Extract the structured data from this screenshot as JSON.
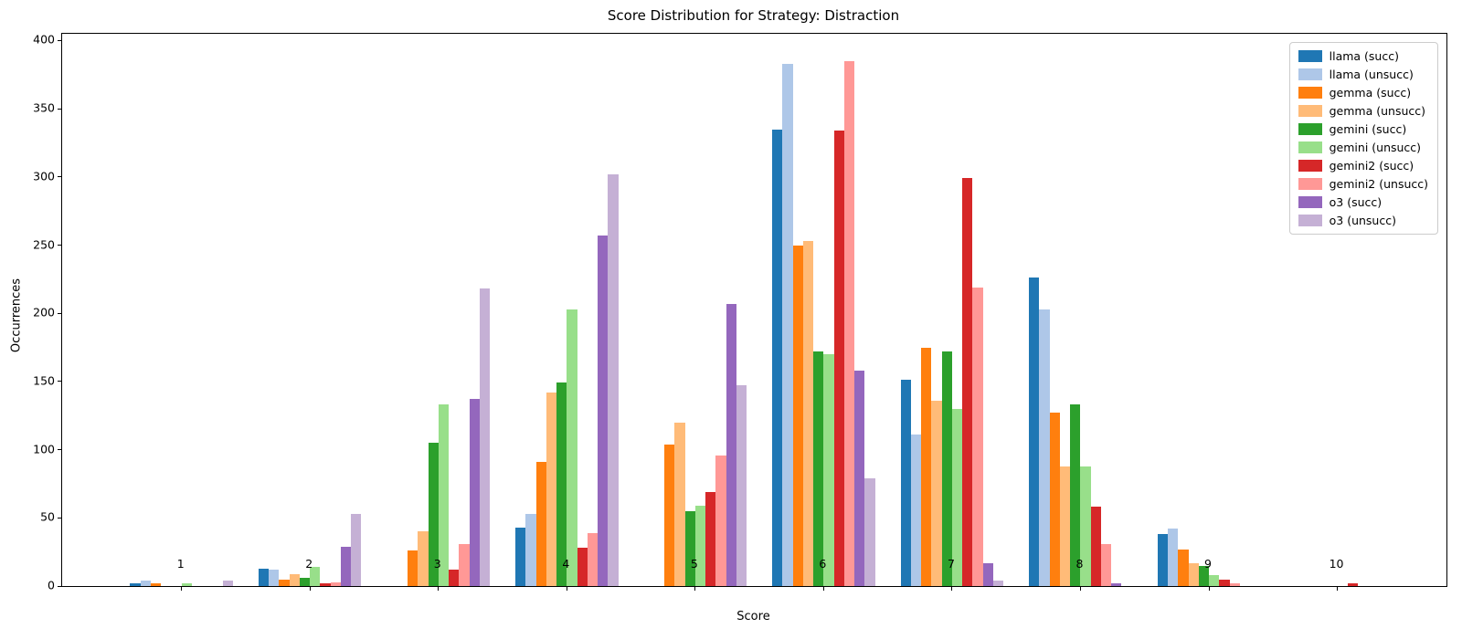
{
  "title": "Score Distribution for Strategy: Distraction",
  "xlabel": "Score",
  "ylabel": "Occurrences",
  "chart_data": {
    "type": "bar",
    "title": "Score Distribution for Strategy: Distraction",
    "xlabel": "Score",
    "ylabel": "Occurrences",
    "categories": [
      "1",
      "2",
      "3",
      "4",
      "5",
      "6",
      "7",
      "8",
      "9",
      "10"
    ],
    "series": [
      {
        "name": "llama (succ)",
        "color": "#1f77b4",
        "values": [
          2,
          13,
          0,
          43,
          0,
          335,
          151,
          226,
          38,
          0
        ]
      },
      {
        "name": "llama (unsucc)",
        "color": "#aec7e8",
        "values": [
          4,
          12,
          0,
          53,
          0,
          383,
          111,
          203,
          42,
          0
        ]
      },
      {
        "name": "gemma (succ)",
        "color": "#ff7f0e",
        "values": [
          2,
          5,
          26,
          91,
          104,
          250,
          175,
          127,
          27,
          0
        ]
      },
      {
        "name": "gemma (unsucc)",
        "color": "#ffbb78",
        "values": [
          0,
          9,
          40,
          142,
          120,
          253,
          136,
          88,
          17,
          0
        ]
      },
      {
        "name": "gemini (succ)",
        "color": "#2ca02c",
        "values": [
          0,
          6,
          105,
          149,
          55,
          172,
          172,
          133,
          15,
          0
        ]
      },
      {
        "name": "gemini (unsucc)",
        "color": "#98df8a",
        "values": [
          2,
          14,
          133,
          203,
          59,
          170,
          130,
          88,
          8,
          0
        ]
      },
      {
        "name": "gemini2 (succ)",
        "color": "#d62728",
        "values": [
          0,
          2,
          12,
          28,
          69,
          334,
          299,
          58,
          5,
          2
        ]
      },
      {
        "name": "gemini2 (unsucc)",
        "color": "#ff9896",
        "values": [
          0,
          3,
          31,
          39,
          96,
          385,
          219,
          31,
          2,
          0
        ]
      },
      {
        "name": "o3 (succ)",
        "color": "#9467bd",
        "values": [
          0,
          29,
          137,
          257,
          207,
          158,
          17,
          2,
          0,
          0
        ]
      },
      {
        "name": "o3 (unsucc)",
        "color": "#c5b0d5",
        "values": [
          4,
          53,
          218,
          302,
          147,
          79,
          4,
          0,
          0,
          0
        ]
      }
    ],
    "ylim": [
      0,
      405
    ],
    "yticks": [
      0,
      50,
      100,
      150,
      200,
      250,
      300,
      350,
      400
    ],
    "grid": false,
    "legend_position": "upper right"
  }
}
